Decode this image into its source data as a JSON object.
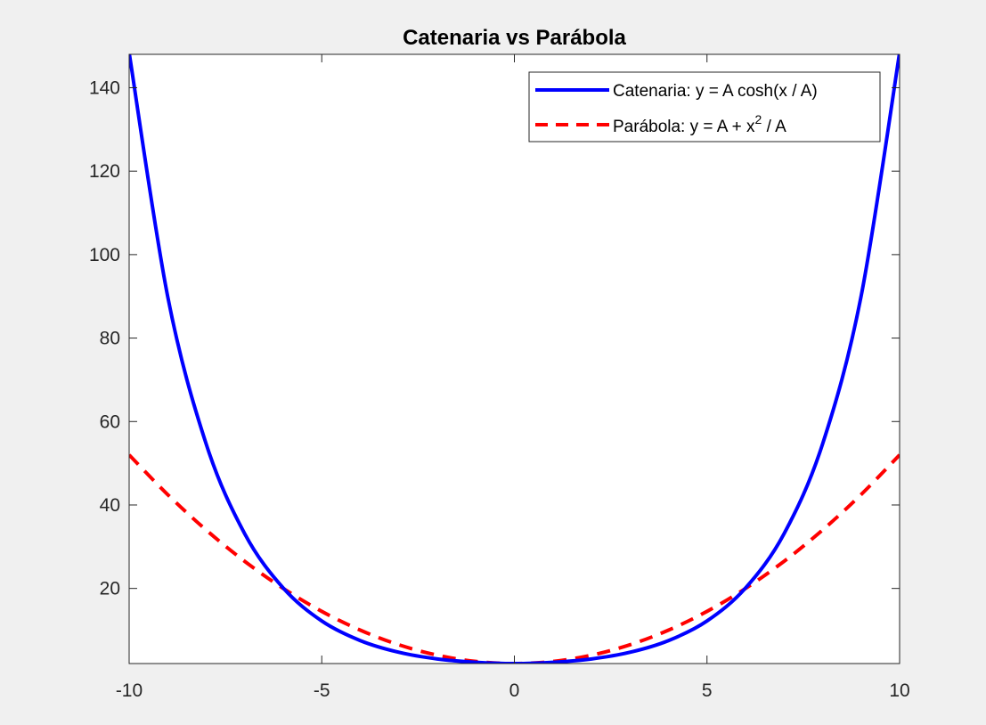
{
  "chart_data": {
    "type": "line",
    "title": "Catenaria vs Parábola",
    "xlabel": "",
    "ylabel": "",
    "xlim": [
      -10,
      10
    ],
    "ylim": [
      2,
      148
    ],
    "x_ticks": [
      -10,
      -5,
      0,
      5,
      10
    ],
    "y_ticks": [
      20,
      40,
      60,
      80,
      100,
      120,
      140
    ],
    "grid": false,
    "legend_position": "top-right",
    "x": [
      -10,
      -9,
      -8,
      -7,
      -6,
      -5,
      -4,
      -3,
      -2,
      -1,
      0,
      1,
      2,
      3,
      4,
      5,
      6,
      7,
      8,
      9,
      10
    ],
    "series": [
      {
        "name": "Catenaria: y = A cosh(x / A)",
        "style": "solid",
        "color": "#0000ff",
        "values": [
          148.4,
          90.0,
          54.6,
          33.1,
          20.1,
          12.2,
          7.5,
          4.7,
          3.1,
          2.3,
          2.0,
          2.3,
          3.1,
          4.7,
          7.5,
          12.2,
          20.1,
          33.1,
          54.6,
          90.0,
          148.4
        ]
      },
      {
        "name_parts": [
          "Parábola: y = A + x",
          "2",
          " / A"
        ],
        "style": "dashed",
        "color": "#ff0000",
        "values": [
          52.0,
          42.5,
          34.0,
          26.5,
          20.0,
          14.5,
          10.0,
          6.5,
          4.0,
          2.5,
          2.0,
          2.5,
          4.0,
          6.5,
          10.0,
          14.5,
          20.0,
          26.5,
          34.0,
          42.5,
          52.0
        ]
      }
    ]
  }
}
